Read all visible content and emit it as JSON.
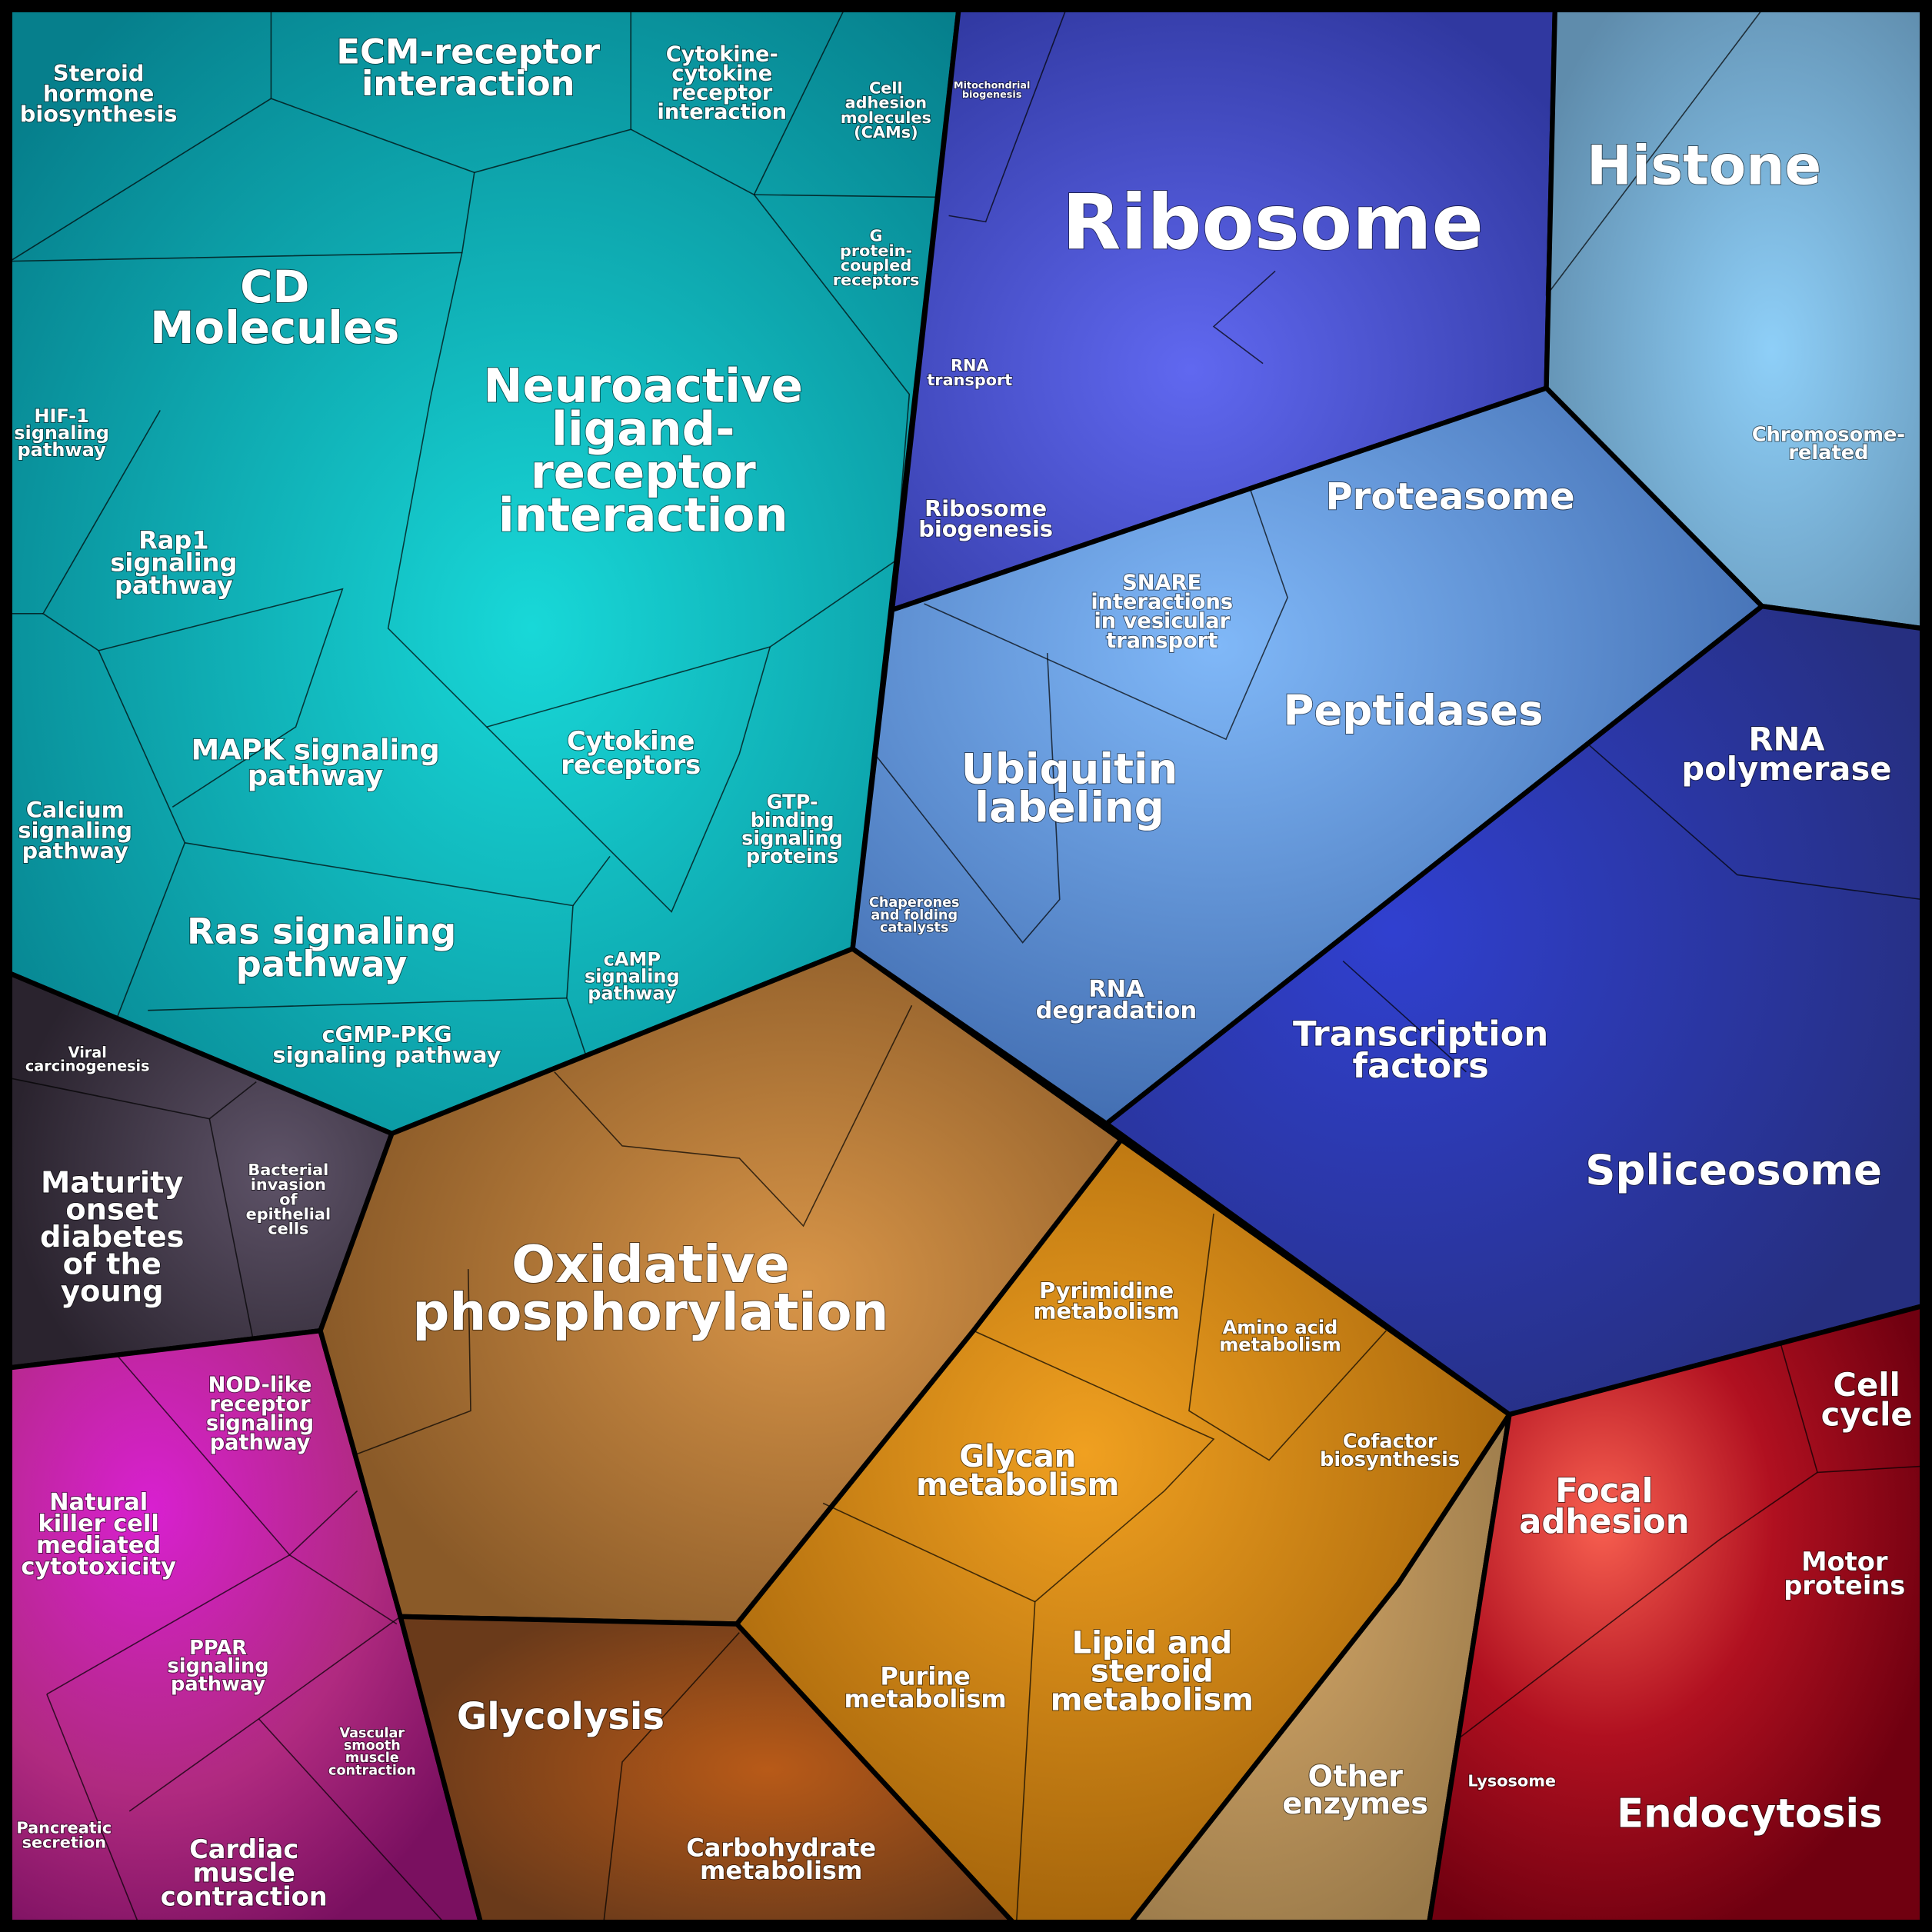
{
  "cells": [
    {
      "lines": [
        "Steroid",
        "hormone",
        "biosynthesis"
      ]
    },
    {
      "lines": [
        "ECM-receptor",
        "interaction"
      ]
    },
    {
      "lines": [
        "Cytokine-",
        "cytokine",
        "receptor",
        "interaction"
      ]
    },
    {
      "lines": [
        "Cell",
        "adhesion",
        "molecules",
        "(CAMs)"
      ]
    },
    {
      "lines": [
        "Mitochondrial",
        "biogenesis"
      ]
    },
    {
      "lines": [
        "Ribosome"
      ]
    },
    {
      "lines": [
        "Histone"
      ]
    },
    {
      "lines": [
        "G",
        "protein-",
        "coupled",
        "receptors"
      ]
    },
    {
      "lines": [
        "CD",
        "Molecules"
      ]
    },
    {
      "lines": [
        "Neuroactive",
        "ligand-",
        "receptor",
        "interaction"
      ]
    },
    {
      "lines": [
        "RNA",
        "transport"
      ]
    },
    {
      "lines": [
        "HIF-1",
        "signaling",
        "pathway"
      ]
    },
    {
      "lines": [
        "Chromosome-",
        "related"
      ]
    },
    {
      "lines": [
        "Proteasome"
      ]
    },
    {
      "lines": [
        "Rap1",
        "signaling",
        "pathway"
      ]
    },
    {
      "lines": [
        "Ribosome",
        "biogenesis"
      ]
    },
    {
      "lines": [
        "SNARE",
        "interactions",
        "in vesicular",
        "transport"
      ]
    },
    {
      "lines": [
        "Peptidases"
      ]
    },
    {
      "lines": [
        "RNA",
        "polymerase"
      ]
    },
    {
      "lines": [
        "MAPK signaling",
        "pathway"
      ]
    },
    {
      "lines": [
        "Cytokine",
        "receptors"
      ]
    },
    {
      "lines": [
        "Ubiquitin",
        "labeling"
      ]
    },
    {
      "lines": [
        "Calcium",
        "signaling",
        "pathway"
      ]
    },
    {
      "lines": [
        "GTP-",
        "binding",
        "signaling",
        "proteins"
      ]
    },
    {
      "lines": [
        "Chaperones",
        "and folding",
        "catalysts"
      ]
    },
    {
      "lines": [
        "Ras signaling",
        "pathway"
      ]
    },
    {
      "lines": [
        "cAMP",
        "signaling",
        "pathway"
      ]
    },
    {
      "lines": [
        "RNA",
        "degradation"
      ]
    },
    {
      "lines": [
        "Transcription",
        "factors"
      ]
    },
    {
      "lines": [
        "cGMP-PKG",
        "signaling pathway"
      ]
    },
    {
      "lines": [
        "Viral",
        "carcinogenesis"
      ]
    },
    {
      "lines": [
        "Maturity",
        "onset",
        "diabetes",
        "of the",
        "young"
      ]
    },
    {
      "lines": [
        "Bacterial",
        "invasion",
        "of",
        "epithelial",
        "cells"
      ]
    },
    {
      "lines": [
        "Spliceosome"
      ]
    },
    {
      "lines": [
        "Oxidative",
        "phosphorylation"
      ]
    },
    {
      "lines": [
        "Pyrimidine",
        "metabolism"
      ]
    },
    {
      "lines": [
        "Amino acid",
        "metabolism"
      ]
    },
    {
      "lines": [
        "NOD-like",
        "receptor",
        "signaling",
        "pathway"
      ]
    },
    {
      "lines": [
        "Cell",
        "cycle"
      ]
    },
    {
      "lines": [
        "Cofactor",
        "biosynthesis"
      ]
    },
    {
      "lines": [
        "Glycan",
        "metabolism"
      ]
    },
    {
      "lines": [
        "Focal",
        "adhesion"
      ]
    },
    {
      "lines": [
        "Natural",
        "killer cell",
        "mediated",
        "cytotoxicity"
      ]
    },
    {
      "lines": [
        "Motor",
        "proteins"
      ]
    },
    {
      "lines": [
        "Lipid and",
        "steroid",
        "metabolism"
      ]
    },
    {
      "lines": [
        "PPAR",
        "signaling",
        "pathway"
      ]
    },
    {
      "lines": [
        "Purine",
        "metabolism"
      ]
    },
    {
      "lines": [
        "Glycolysis"
      ]
    },
    {
      "lines": [
        "Vascular",
        "smooth",
        "muscle",
        "contraction"
      ]
    },
    {
      "lines": [
        "Other",
        "enzymes"
      ]
    },
    {
      "lines": [
        "Lysosome"
      ]
    },
    {
      "lines": [
        "Endocytosis"
      ]
    },
    {
      "lines": [
        "Pancreatic",
        "secretion"
      ]
    },
    {
      "lines": [
        "Cardiac",
        "muscle",
        "contraction"
      ]
    },
    {
      "lines": [
        "Carbohydrate",
        "metabolism"
      ]
    }
  ]
}
